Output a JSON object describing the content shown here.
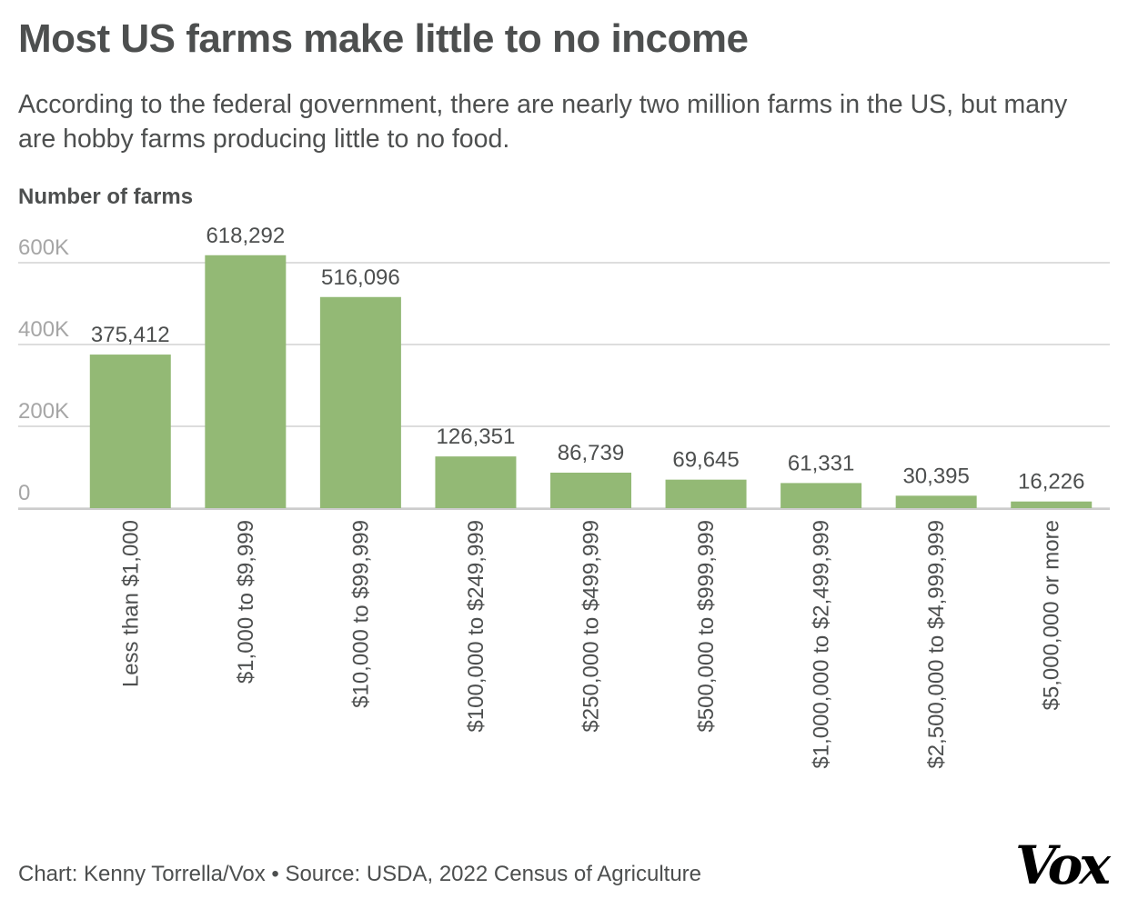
{
  "title": "Most US farms make little to no income",
  "subtitle": "According to the federal government, there are nearly two million farms in the US, but many are hobby farms producing little to no food.",
  "footer": "Chart: Kenny Torrella/Vox • Source: USDA, 2022 Census of Agriculture",
  "logo": "Vox",
  "colors": {
    "bar": "#93b975",
    "text": "#4d4f4f",
    "tick": "#a6a6a6",
    "grid": "#dddddd"
  },
  "chart_data": {
    "type": "bar",
    "title": "Most US farms make little to no income",
    "ylabel": "Number of farms",
    "xlabel": "",
    "ylim": [
      0,
      600000
    ],
    "yticks": [
      0,
      200000,
      400000,
      600000
    ],
    "ytick_labels": [
      "0",
      "200K",
      "400K",
      "600K"
    ],
    "grid": true,
    "categories": [
      "Less than $1,000",
      "$1,000 to $9,999",
      "$10,000 to $99,999",
      "$100,000 to $249,999",
      "$250,000 to $499,999",
      "$500,000 to $999,999",
      "$1,000,000 to $2,499,999",
      "$2,500,000 to $4,999,999",
      "$5,000,000 or more"
    ],
    "values": [
      375412,
      618292,
      516096,
      126351,
      86739,
      69645,
      61331,
      30395,
      16226
    ],
    "data_labels": [
      "375,412",
      "618,292",
      "516,096",
      "126,351",
      "86,739",
      "69,645",
      "61,331",
      "30,395",
      "16,226"
    ]
  }
}
